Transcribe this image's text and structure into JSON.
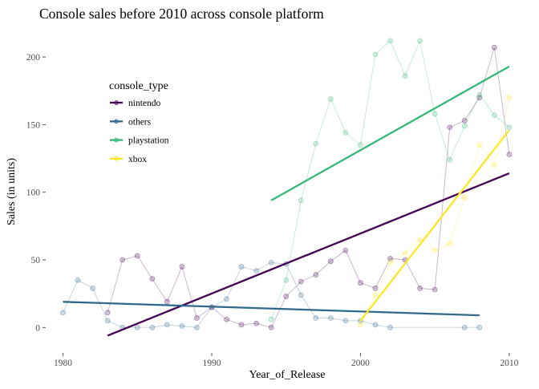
{
  "chart_data": {
    "type": "line",
    "title": "Console sales before 2010 across console platform",
    "xlabel": "Year_of_Release",
    "ylabel": "Sales (in units)",
    "xlim": [
      1979,
      2010.6
    ],
    "ylim": [
      -17,
      222
    ],
    "x_ticks": [
      1980,
      1990,
      2000,
      2010
    ],
    "y_ticks": [
      0,
      50,
      100,
      150,
      200
    ],
    "grid": false,
    "legend": {
      "title": "console_type",
      "position": "top-left",
      "entries": [
        "nintendo",
        "others",
        "playstation",
        "xbox"
      ]
    },
    "series": [
      {
        "name": "nintendo",
        "color": "#440154",
        "points": [
          [
            1983,
            11
          ],
          [
            1984,
            50
          ],
          [
            1985,
            53
          ],
          [
            1986,
            36
          ],
          [
            1987,
            19
          ],
          [
            1988,
            45
          ],
          [
            1989,
            7
          ],
          [
            1990,
            15
          ],
          [
            1991,
            6
          ],
          [
            1992,
            2
          ],
          [
            1993,
            3
          ],
          [
            1994,
            0
          ],
          [
            1995,
            23
          ],
          [
            1996,
            34
          ],
          [
            1997,
            39
          ],
          [
            1998,
            49
          ],
          [
            1999,
            57
          ],
          [
            2000,
            33
          ],
          [
            2001,
            29
          ],
          [
            2002,
            51
          ],
          [
            2003,
            50
          ],
          [
            2004,
            29
          ],
          [
            2005,
            28
          ],
          [
            2006,
            148
          ],
          [
            2007,
            153
          ],
          [
            2008,
            170
          ],
          [
            2009,
            207
          ],
          [
            2010,
            128
          ]
        ],
        "trend": [
          [
            1983,
            -6
          ],
          [
            2010,
            114
          ]
        ]
      },
      {
        "name": "others",
        "color": "#31688E",
        "points": [
          [
            1980,
            11
          ],
          [
            1981,
            35
          ],
          [
            1982,
            29
          ],
          [
            1983,
            5
          ],
          [
            1984,
            0
          ],
          [
            1985,
            0
          ],
          [
            1986,
            0
          ],
          [
            1987,
            2
          ],
          [
            1988,
            1
          ],
          [
            1989,
            0
          ],
          [
            1990,
            15
          ],
          [
            1991,
            21
          ],
          [
            1992,
            45
          ],
          [
            1993,
            42
          ],
          [
            1994,
            48
          ],
          [
            1995,
            47
          ],
          [
            1996,
            24
          ],
          [
            1997,
            7
          ],
          [
            1998,
            7
          ],
          [
            1999,
            5
          ],
          [
            2000,
            5
          ],
          [
            2001,
            2
          ],
          [
            2002,
            0
          ],
          [
            2007,
            0
          ],
          [
            2008,
            0
          ]
        ],
        "trend": [
          [
            1980,
            19
          ],
          [
            2008,
            9
          ]
        ]
      },
      {
        "name": "playstation",
        "color": "#35B779",
        "points": [
          [
            1994,
            6
          ],
          [
            1995,
            35
          ],
          [
            1996,
            94
          ],
          [
            1997,
            136
          ],
          [
            1998,
            169
          ],
          [
            1999,
            144
          ],
          [
            2000,
            135
          ],
          [
            2001,
            202
          ],
          [
            2002,
            212
          ],
          [
            2003,
            186
          ],
          [
            2004,
            212
          ],
          [
            2005,
            158
          ],
          [
            2006,
            124
          ],
          [
            2007,
            149
          ],
          [
            2008,
            172
          ],
          [
            2009,
            157
          ],
          [
            2010,
            148
          ]
        ],
        "trend": [
          [
            1994,
            94
          ],
          [
            2010,
            193
          ]
        ]
      },
      {
        "name": "xbox",
        "color": "#FDE725",
        "points": [
          [
            2000,
            2
          ],
          [
            2001,
            24
          ],
          [
            2002,
            48
          ],
          [
            2003,
            55
          ],
          [
            2004,
            65
          ],
          [
            2005,
            57
          ],
          [
            2006,
            62
          ],
          [
            2007,
            96
          ],
          [
            2008,
            135
          ],
          [
            2009,
            120
          ],
          [
            2010,
            170
          ]
        ],
        "trend": [
          [
            2000,
            5
          ],
          [
            2010,
            146
          ]
        ]
      }
    ]
  }
}
